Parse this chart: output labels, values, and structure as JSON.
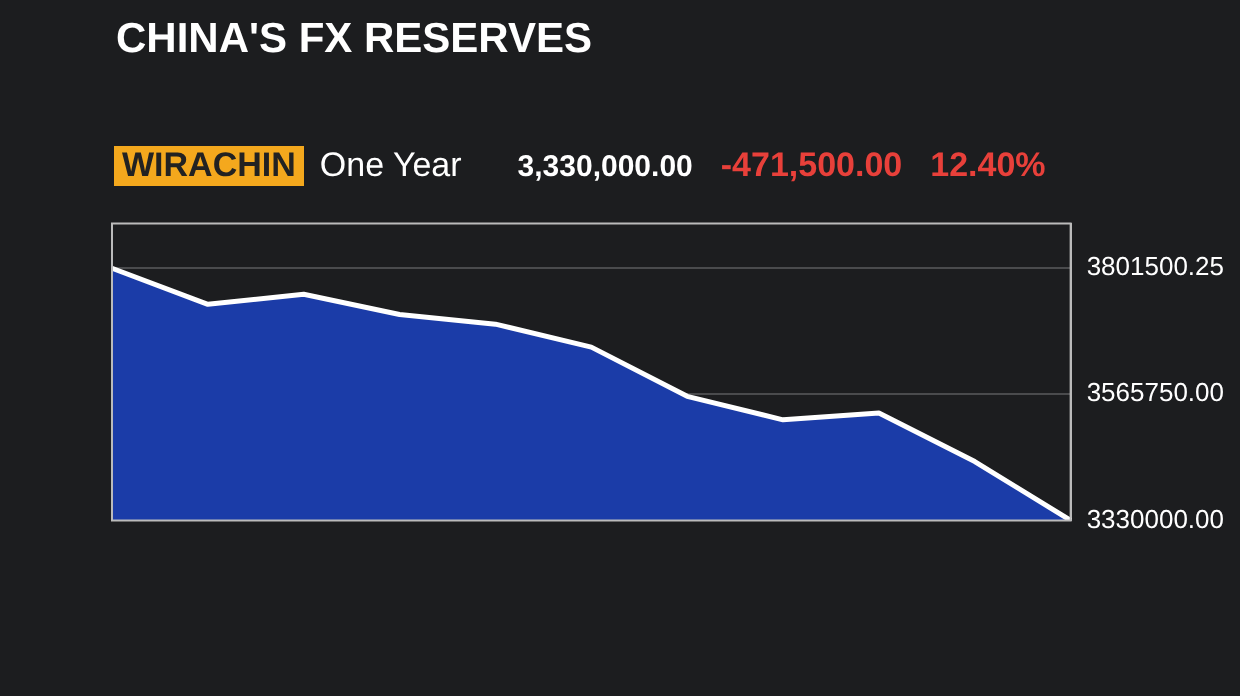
{
  "chart_data": {
    "type": "area",
    "title": "CHINA'S FX RESERVES",
    "annotations": [
      "WIRACHIN",
      "One Year",
      "3,330,000.00",
      "-471,500.00",
      "12.40%"
    ],
    "categories": [
      null,
      null,
      null,
      null,
      null,
      null,
      null,
      null,
      null,
      null,
      null
    ],
    "series": [
      {
        "color": "#ffffff",
        "values": [
          3801500,
          3734000,
          3753000,
          3715000,
          3697000,
          3654000,
          3562000,
          3518000,
          3531000,
          3440000,
          3330000
        ]
      }
    ],
    "ylim": [
      3330000,
      3885000
    ],
    "yticks": [
      {
        "value": 3330000,
        "label": "3330000.00"
      },
      {
        "value": 3565750,
        "label": "3565750.00"
      },
      {
        "value": 3801500.25,
        "label": "3801500.25"
      }
    ],
    "grid": "y",
    "legend": false,
    "tick_labels": "y",
    "marker": "none"
  }
}
